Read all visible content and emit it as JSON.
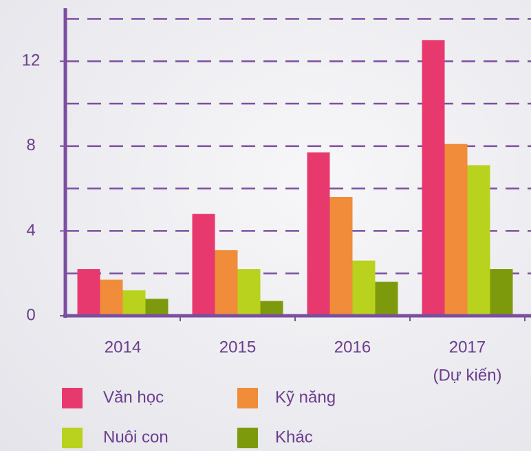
{
  "chart_data": {
    "type": "bar",
    "categories": [
      "2014",
      "2015",
      "2016",
      "2017"
    ],
    "note": "(Dự kiến)",
    "series": [
      {
        "name": "Văn học",
        "color": "#e8396e",
        "values": [
          2.2,
          4.8,
          7.7,
          13
        ]
      },
      {
        "name": "Kỹ năng",
        "color": "#f08c3a",
        "values": [
          1.7,
          3.1,
          5.6,
          8.1
        ]
      },
      {
        "name": "Nuôi con",
        "color": "#b8d21e",
        "values": [
          1.2,
          2.2,
          2.6,
          7.1
        ]
      },
      {
        "name": "Khác",
        "color": "#7d9a0c",
        "values": [
          0.8,
          0.7,
          1.6,
          2.2
        ]
      }
    ],
    "ylim": [
      0,
      14.5
    ],
    "yticks": [
      0,
      4,
      8,
      12
    ],
    "minor_gridlines": [
      2,
      6,
      10,
      14
    ],
    "axis_color": "#7b4fa0",
    "grid": true
  }
}
